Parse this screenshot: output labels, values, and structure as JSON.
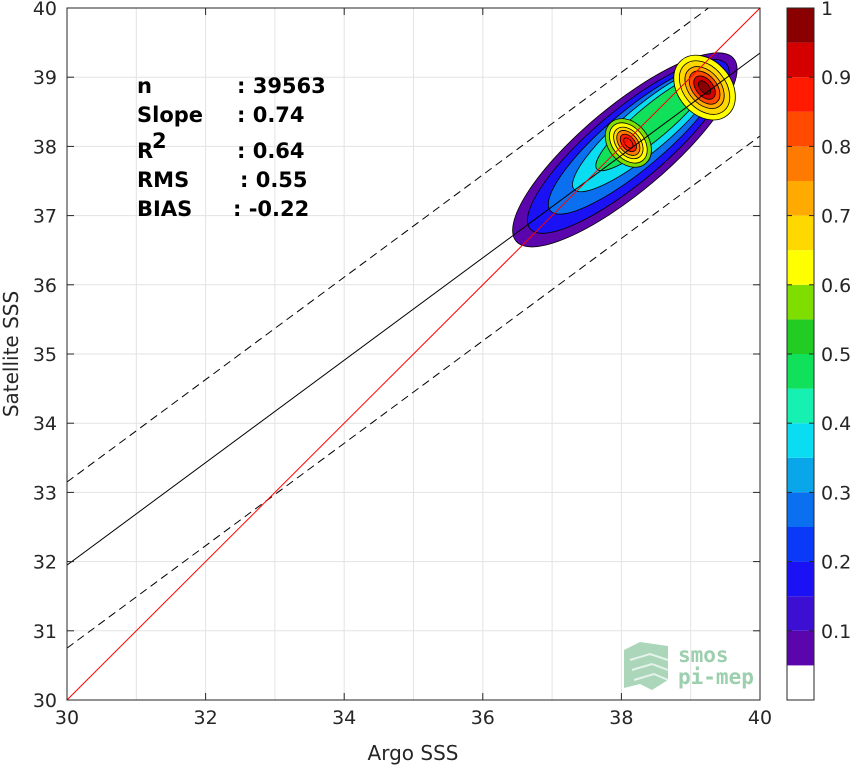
{
  "chart_data": {
    "type": "contour",
    "xlabel": "Argo SSS",
    "ylabel": "Satellite SSS",
    "xlim": [
      30,
      40
    ],
    "ylim": [
      30,
      40
    ],
    "xticks": [
      "30",
      "32",
      "34",
      "36",
      "38",
      "40"
    ],
    "yticks": [
      "30",
      "31",
      "32",
      "33",
      "34",
      "35",
      "36",
      "37",
      "38",
      "39",
      "40"
    ],
    "grid": true,
    "stats": [
      {
        "label": "n",
        "value": ": 39563"
      },
      {
        "label": "Slope",
        "value": ": 0.74"
      },
      {
        "label": "R",
        "sup": "2",
        "value": ": 0.64"
      },
      {
        "label": "RMS",
        "value": ": 0.55"
      },
      {
        "label": "BIAS",
        "value": ": -0.22"
      }
    ],
    "lines": {
      "identity": {
        "x": [
          30,
          40
        ],
        "y": [
          30,
          40
        ],
        "color": "#ff0000"
      },
      "regression": {
        "x": [
          30,
          40
        ],
        "y": [
          31.95,
          39.35
        ],
        "color": "#000000"
      },
      "upper_bound": {
        "x": [
          30,
          40
        ],
        "y": [
          33.15,
          40.55
        ],
        "color": "#000000",
        "style": "dashed"
      },
      "lower_bound": {
        "x": [
          30,
          40
        ],
        "y": [
          30.75,
          38.15
        ],
        "color": "#000000",
        "style": "dashed"
      }
    },
    "density_peaks": [
      {
        "x": 38.1,
        "y": 38.05,
        "value": 0.85
      },
      {
        "x": 39.2,
        "y": 38.85,
        "value": 0.95
      }
    ],
    "colorbar": {
      "ticks": [
        "0.1",
        "0.2",
        "0.3",
        "0.4",
        "0.5",
        "0.6",
        "0.7",
        "0.8",
        "0.9",
        "1"
      ],
      "colors": [
        "#ffffff",
        "#5b06ad",
        "#3c0fd2",
        "#1a12f5",
        "#0a3af8",
        "#0a70f0",
        "#0aa6ea",
        "#0adcf2",
        "#16f0b0",
        "#10e05a",
        "#22cc22",
        "#7fdd00",
        "#ffff00",
        "#ffd800",
        "#ffaa00",
        "#ff7a00",
        "#ff4a00",
        "#ff1a00",
        "#d40000",
        "#8a0000"
      ]
    }
  },
  "logo": {
    "line1": "smos",
    "line2": "pi-mep"
  }
}
